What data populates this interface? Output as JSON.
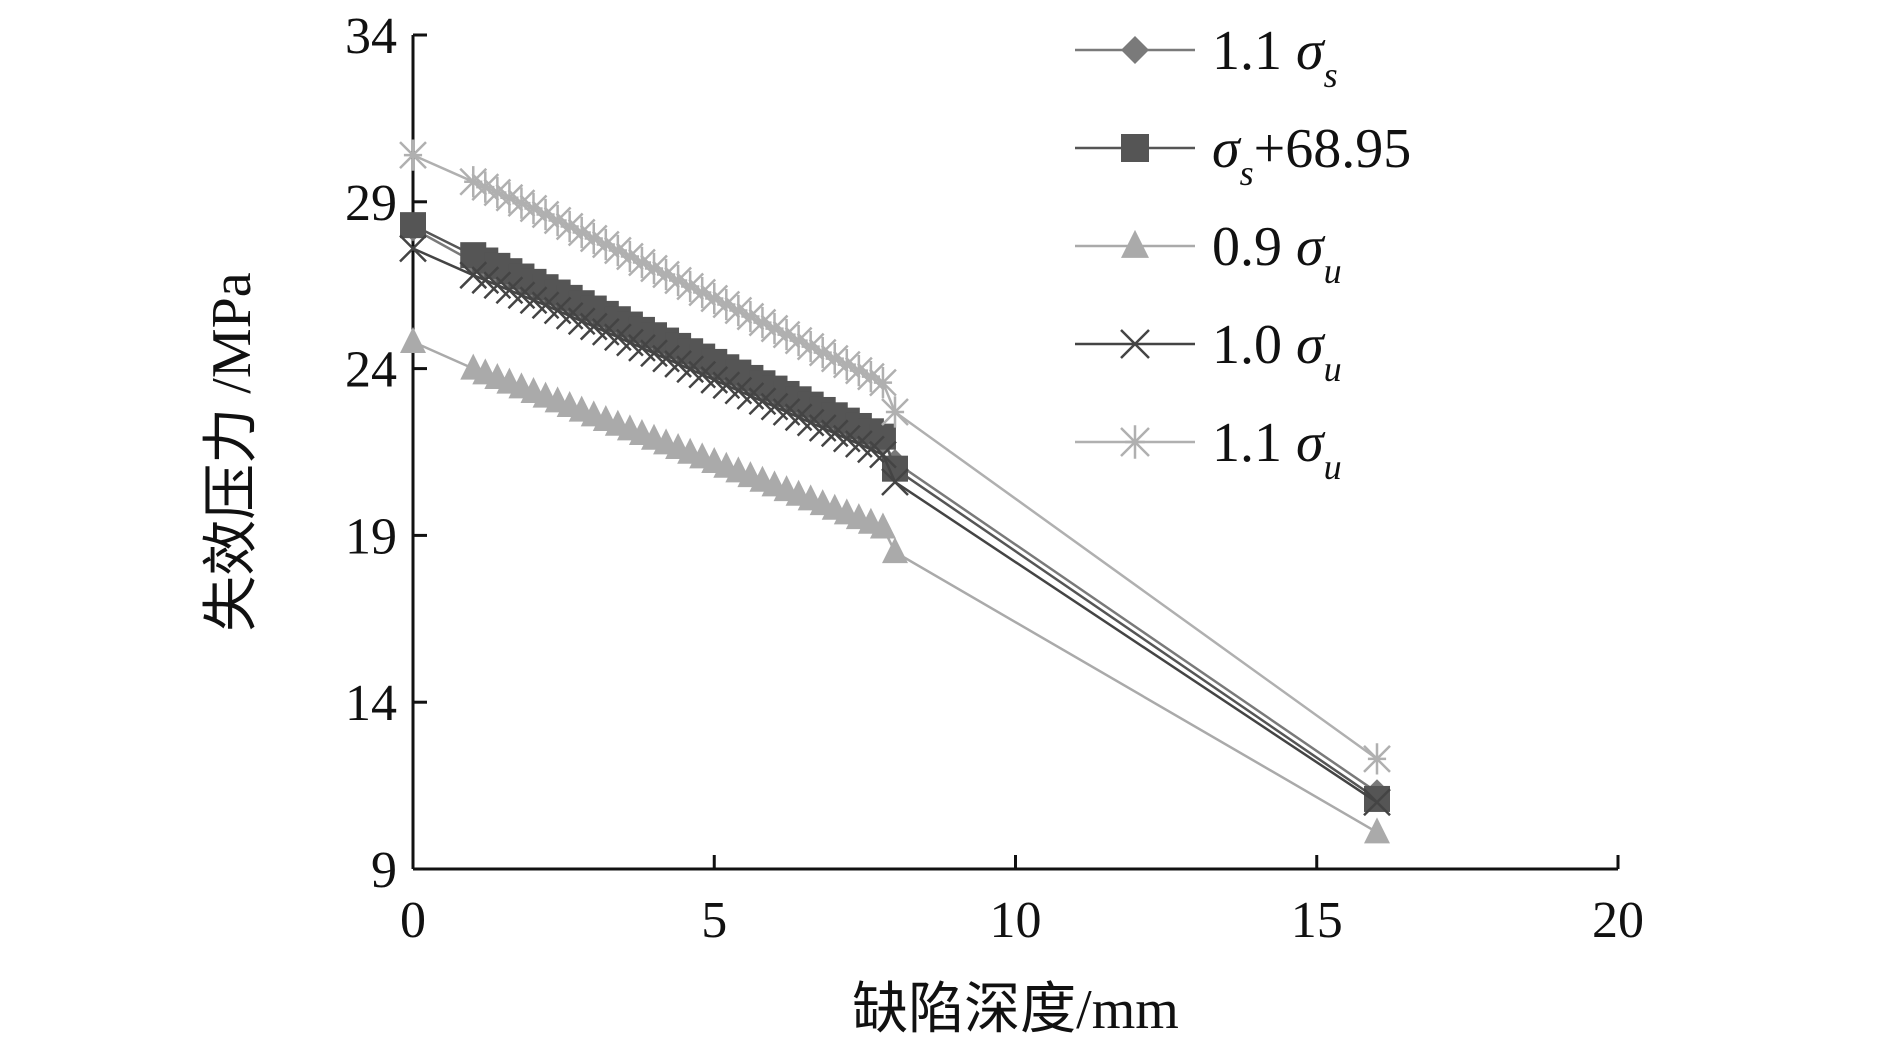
{
  "chart_data": {
    "type": "line",
    "xlabel": "缺陷深度/mm",
    "ylabel": "失效压力 /MPa",
    "xlim": [
      0,
      20
    ],
    "ylim": [
      9,
      34
    ],
    "xticks": [
      0,
      5,
      10,
      15,
      20
    ],
    "yticks": [
      9,
      14,
      19,
      24,
      29,
      34
    ],
    "grid": false,
    "legend_position": "top-right",
    "series": [
      {
        "name": "1.1 σs",
        "legend": {
          "prefix": "1.1 ",
          "symbol": "σ",
          "sub": "s",
          "suffix": ""
        },
        "marker": "diamond",
        "color": "#7a7a7a",
        "x": [
          0,
          1,
          1.2,
          1.4,
          1.6,
          1.8,
          2,
          2.2,
          2.4,
          2.6,
          2.8,
          3,
          3.2,
          3.4,
          3.6,
          3.8,
          4,
          4.2,
          4.4,
          4.6,
          4.8,
          5,
          5.2,
          5.4,
          5.6,
          5.8,
          6,
          6.2,
          6.4,
          6.6,
          6.8,
          7,
          7.2,
          7.4,
          7.6,
          7.8,
          8,
          16
        ],
        "y": [
          28.2,
          27.2,
          27.05,
          26.9,
          26.75,
          26.6,
          26.45,
          26.3,
          26.14,
          25.98,
          25.82,
          25.66,
          25.5,
          25.34,
          25.18,
          25.02,
          24.86,
          24.7,
          24.54,
          24.38,
          24.22,
          24.06,
          23.9,
          23.74,
          23.58,
          23.42,
          23.26,
          23.1,
          22.94,
          22.78,
          22.62,
          22.46,
          22.3,
          22.14,
          21.98,
          21.82,
          21.2,
          11.3
        ]
      },
      {
        "name": "σs+68.95",
        "legend": {
          "prefix": "",
          "symbol": "σ",
          "sub": "s",
          "suffix": "+68.95"
        },
        "marker": "square",
        "color": "#555555",
        "x": [
          0,
          1,
          1.2,
          1.4,
          1.6,
          1.8,
          2,
          2.2,
          2.4,
          2.6,
          2.8,
          3,
          3.2,
          3.4,
          3.6,
          3.8,
          4,
          4.2,
          4.4,
          4.6,
          4.8,
          5,
          5.2,
          5.4,
          5.6,
          5.8,
          6,
          6.2,
          6.4,
          6.6,
          6.8,
          7,
          7.2,
          7.4,
          7.6,
          7.8,
          8,
          16
        ],
        "y": [
          28.3,
          27.4,
          27.24,
          27.08,
          26.92,
          26.76,
          26.6,
          26.44,
          26.28,
          26.12,
          25.96,
          25.8,
          25.64,
          25.48,
          25.32,
          25.16,
          25.0,
          24.84,
          24.68,
          24.52,
          24.36,
          24.2,
          24.04,
          23.88,
          23.72,
          23.56,
          23.4,
          23.24,
          23.08,
          22.92,
          22.76,
          22.6,
          22.44,
          22.28,
          22.12,
          21.96,
          21.0,
          11.1
        ]
      },
      {
        "name": "0.9 σu",
        "legend": {
          "prefix": "0.9 ",
          "symbol": "σ",
          "sub": "u",
          "suffix": ""
        },
        "marker": "triangle",
        "color": "#aaaaaa",
        "x": [
          0,
          1,
          1.2,
          1.4,
          1.6,
          1.8,
          2,
          2.2,
          2.4,
          2.6,
          2.8,
          3,
          3.2,
          3.4,
          3.6,
          3.8,
          4,
          4.2,
          4.4,
          4.6,
          4.8,
          5,
          5.2,
          5.4,
          5.6,
          5.8,
          6,
          6.2,
          6.4,
          6.6,
          6.8,
          7,
          7.2,
          7.4,
          7.6,
          7.8,
          8,
          16
        ],
        "y": [
          24.8,
          24.0,
          23.86,
          23.72,
          23.58,
          23.44,
          23.3,
          23.16,
          23.02,
          22.88,
          22.74,
          22.6,
          22.46,
          22.32,
          22.18,
          22.04,
          21.9,
          21.76,
          21.62,
          21.48,
          21.34,
          21.2,
          21.06,
          20.92,
          20.78,
          20.64,
          20.5,
          20.36,
          20.22,
          20.08,
          19.94,
          19.8,
          19.66,
          19.52,
          19.38,
          19.24,
          18.5,
          10.1
        ]
      },
      {
        "name": "1.0 σu",
        "legend": {
          "prefix": "1.0 ",
          "symbol": "σ",
          "sub": "u",
          "suffix": ""
        },
        "marker": "x",
        "color": "#444444",
        "x": [
          0,
          1,
          1.2,
          1.4,
          1.6,
          1.8,
          2,
          2.2,
          2.4,
          2.6,
          2.8,
          3,
          3.2,
          3.4,
          3.6,
          3.8,
          4,
          4.2,
          4.4,
          4.6,
          4.8,
          5,
          5.2,
          5.4,
          5.6,
          5.8,
          6,
          6.2,
          6.4,
          6.6,
          6.8,
          7,
          7.2,
          7.4,
          7.6,
          7.8,
          8,
          16
        ],
        "y": [
          27.6,
          26.8,
          26.65,
          26.5,
          26.35,
          26.2,
          26.05,
          25.9,
          25.74,
          25.58,
          25.42,
          25.26,
          25.1,
          24.94,
          24.78,
          24.62,
          24.46,
          24.3,
          24.14,
          23.98,
          23.82,
          23.66,
          23.5,
          23.34,
          23.18,
          23.02,
          22.86,
          22.7,
          22.54,
          22.38,
          22.22,
          22.06,
          21.9,
          21.74,
          21.58,
          21.42,
          20.6,
          11.0
        ]
      },
      {
        "name": "1.1 σu",
        "legend": {
          "prefix": "1.1 ",
          "symbol": "σ",
          "sub": "u",
          "suffix": ""
        },
        "marker": "star",
        "color": "#b0b0b0",
        "x": [
          0,
          1,
          1.2,
          1.4,
          1.6,
          1.8,
          2,
          2.2,
          2.4,
          2.6,
          2.8,
          3,
          3.2,
          3.4,
          3.6,
          3.8,
          4,
          4.2,
          4.4,
          4.6,
          4.8,
          5,
          5.2,
          5.4,
          5.6,
          5.8,
          6,
          6.2,
          6.4,
          6.6,
          6.8,
          7,
          7.2,
          7.4,
          7.6,
          7.8,
          8,
          16
        ],
        "y": [
          30.4,
          29.6,
          29.44,
          29.28,
          29.12,
          28.96,
          28.8,
          28.62,
          28.44,
          28.26,
          28.08,
          27.9,
          27.72,
          27.54,
          27.36,
          27.18,
          27.0,
          26.82,
          26.64,
          26.46,
          26.28,
          26.1,
          25.92,
          25.74,
          25.56,
          25.38,
          25.2,
          25.02,
          24.84,
          24.66,
          24.48,
          24.3,
          24.12,
          23.94,
          23.76,
          23.58,
          22.7,
          12.3
        ]
      }
    ]
  }
}
